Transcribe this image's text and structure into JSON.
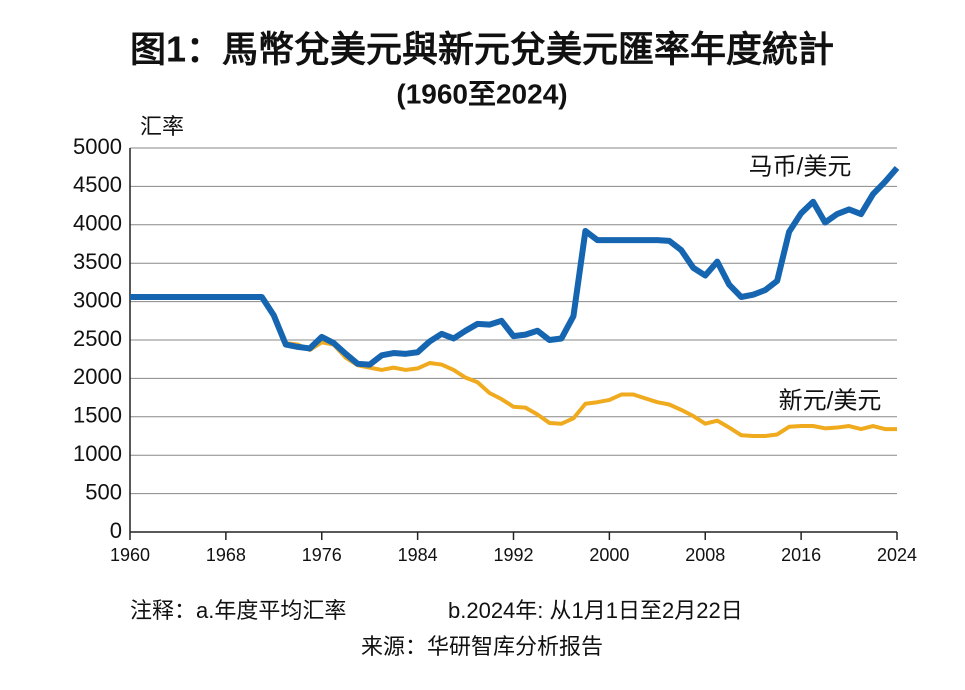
{
  "chart_data": {
    "type": "line",
    "title": "图1：馬幣兌美元與新元兌美元匯率年度統計",
    "subtitle": "(1960至2024)",
    "y_label": "汇率",
    "notes": [
      "注释：a.年度平均汇率",
      "b.2024年: 从1月1日至2月22日"
    ],
    "source": "来源：华研智库分析报告",
    "x": [
      1960,
      1961,
      1962,
      1963,
      1964,
      1965,
      1966,
      1967,
      1968,
      1969,
      1970,
      1971,
      1972,
      1973,
      1974,
      1975,
      1976,
      1977,
      1978,
      1979,
      1980,
      1981,
      1982,
      1983,
      1984,
      1985,
      1986,
      1987,
      1988,
      1989,
      1990,
      1991,
      1992,
      1993,
      1994,
      1995,
      1996,
      1997,
      1998,
      1999,
      2000,
      2001,
      2002,
      2003,
      2004,
      2005,
      2006,
      2007,
      2008,
      2009,
      2010,
      2011,
      2012,
      2013,
      2014,
      2015,
      2016,
      2017,
      2018,
      2019,
      2020,
      2021,
      2022,
      2023,
      2024
    ],
    "series": [
      {
        "name": "马币/美元",
        "color": "#1565b0",
        "values": [
          3060,
          3060,
          3060,
          3060,
          3060,
          3060,
          3060,
          3060,
          3060,
          3060,
          3060,
          3060,
          2820,
          2440,
          2410,
          2390,
          2540,
          2460,
          2320,
          2190,
          2180,
          2300,
          2330,
          2320,
          2340,
          2480,
          2580,
          2520,
          2620,
          2710,
          2700,
          2750,
          2550,
          2570,
          2620,
          2500,
          2520,
          2810,
          3920,
          3800,
          3800,
          3800,
          3800,
          3800,
          3800,
          3790,
          3670,
          3440,
          3340,
          3520,
          3220,
          3060,
          3090,
          3150,
          3270,
          3910,
          4150,
          4300,
          4030,
          4140,
          4200,
          4140,
          4400,
          4560,
          4740
        ]
      },
      {
        "name": "新元/美元",
        "color": "#f0aa1e",
        "values": [
          3060,
          3060,
          3060,
          3060,
          3060,
          3060,
          3060,
          3060,
          3060,
          3060,
          3060,
          3060,
          2810,
          2460,
          2440,
          2370,
          2470,
          2440,
          2270,
          2170,
          2140,
          2110,
          2140,
          2110,
          2130,
          2200,
          2180,
          2110,
          2010,
          1950,
          1810,
          1730,
          1630,
          1620,
          1530,
          1420,
          1410,
          1480,
          1670,
          1690,
          1720,
          1790,
          1790,
          1740,
          1690,
          1660,
          1590,
          1510,
          1410,
          1450,
          1360,
          1260,
          1250,
          1250,
          1270,
          1370,
          1380,
          1380,
          1350,
          1360,
          1380,
          1340,
          1380,
          1340,
          1340
        ]
      }
    ],
    "xlim": [
      1960,
      2024
    ],
    "xticks": [
      1960,
      1968,
      1976,
      1984,
      1992,
      2000,
      2008,
      2016,
      2024
    ],
    "ylim": [
      0,
      5000
    ],
    "yticks": [
      0,
      500,
      1000,
      1500,
      2000,
      2500,
      3000,
      3500,
      4000,
      4500,
      5000
    ],
    "grid": true
  }
}
